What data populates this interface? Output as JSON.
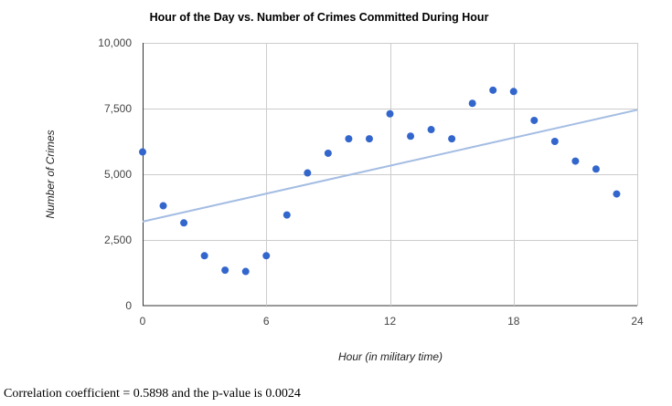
{
  "chart_data": {
    "type": "scatter",
    "title": "Hour of the Day vs. Number of Crimes Committed During Hour",
    "xlabel": "Hour (in military time)",
    "ylabel": "Number of Crimes",
    "xlim": [
      0,
      24
    ],
    "ylim": [
      0,
      10000
    ],
    "x_ticks": [
      0,
      6,
      12,
      18,
      24
    ],
    "x_tick_labels": [
      "0",
      "6",
      "12",
      "18",
      "24"
    ],
    "y_ticks": [
      0,
      2500,
      5000,
      7500,
      10000
    ],
    "y_tick_labels": [
      "0",
      "2,500",
      "5,000",
      "7,500",
      "10,000"
    ],
    "grid": true,
    "legend": "none",
    "point_color": "#3366cc",
    "trendline_color": "#a4bde3",
    "trendline": {
      "x": [
        0,
        24
      ],
      "y": [
        3200,
        7450
      ]
    },
    "points": {
      "x": [
        0,
        1,
        2,
        3,
        4,
        5,
        6,
        7,
        8,
        9,
        10,
        11,
        12,
        13,
        14,
        15,
        16,
        17,
        18,
        19,
        20,
        21,
        22,
        23
      ],
      "y": [
        5850,
        3800,
        3150,
        1900,
        1350,
        1300,
        1900,
        3450,
        5050,
        5800,
        6350,
        6350,
        7300,
        6450,
        6700,
        6350,
        7700,
        8200,
        8150,
        7050,
        6250,
        5500,
        5200,
        4250
      ]
    }
  },
  "footnote": "Correlation coefficient = 0.5898 and the p-value is 0.0024"
}
